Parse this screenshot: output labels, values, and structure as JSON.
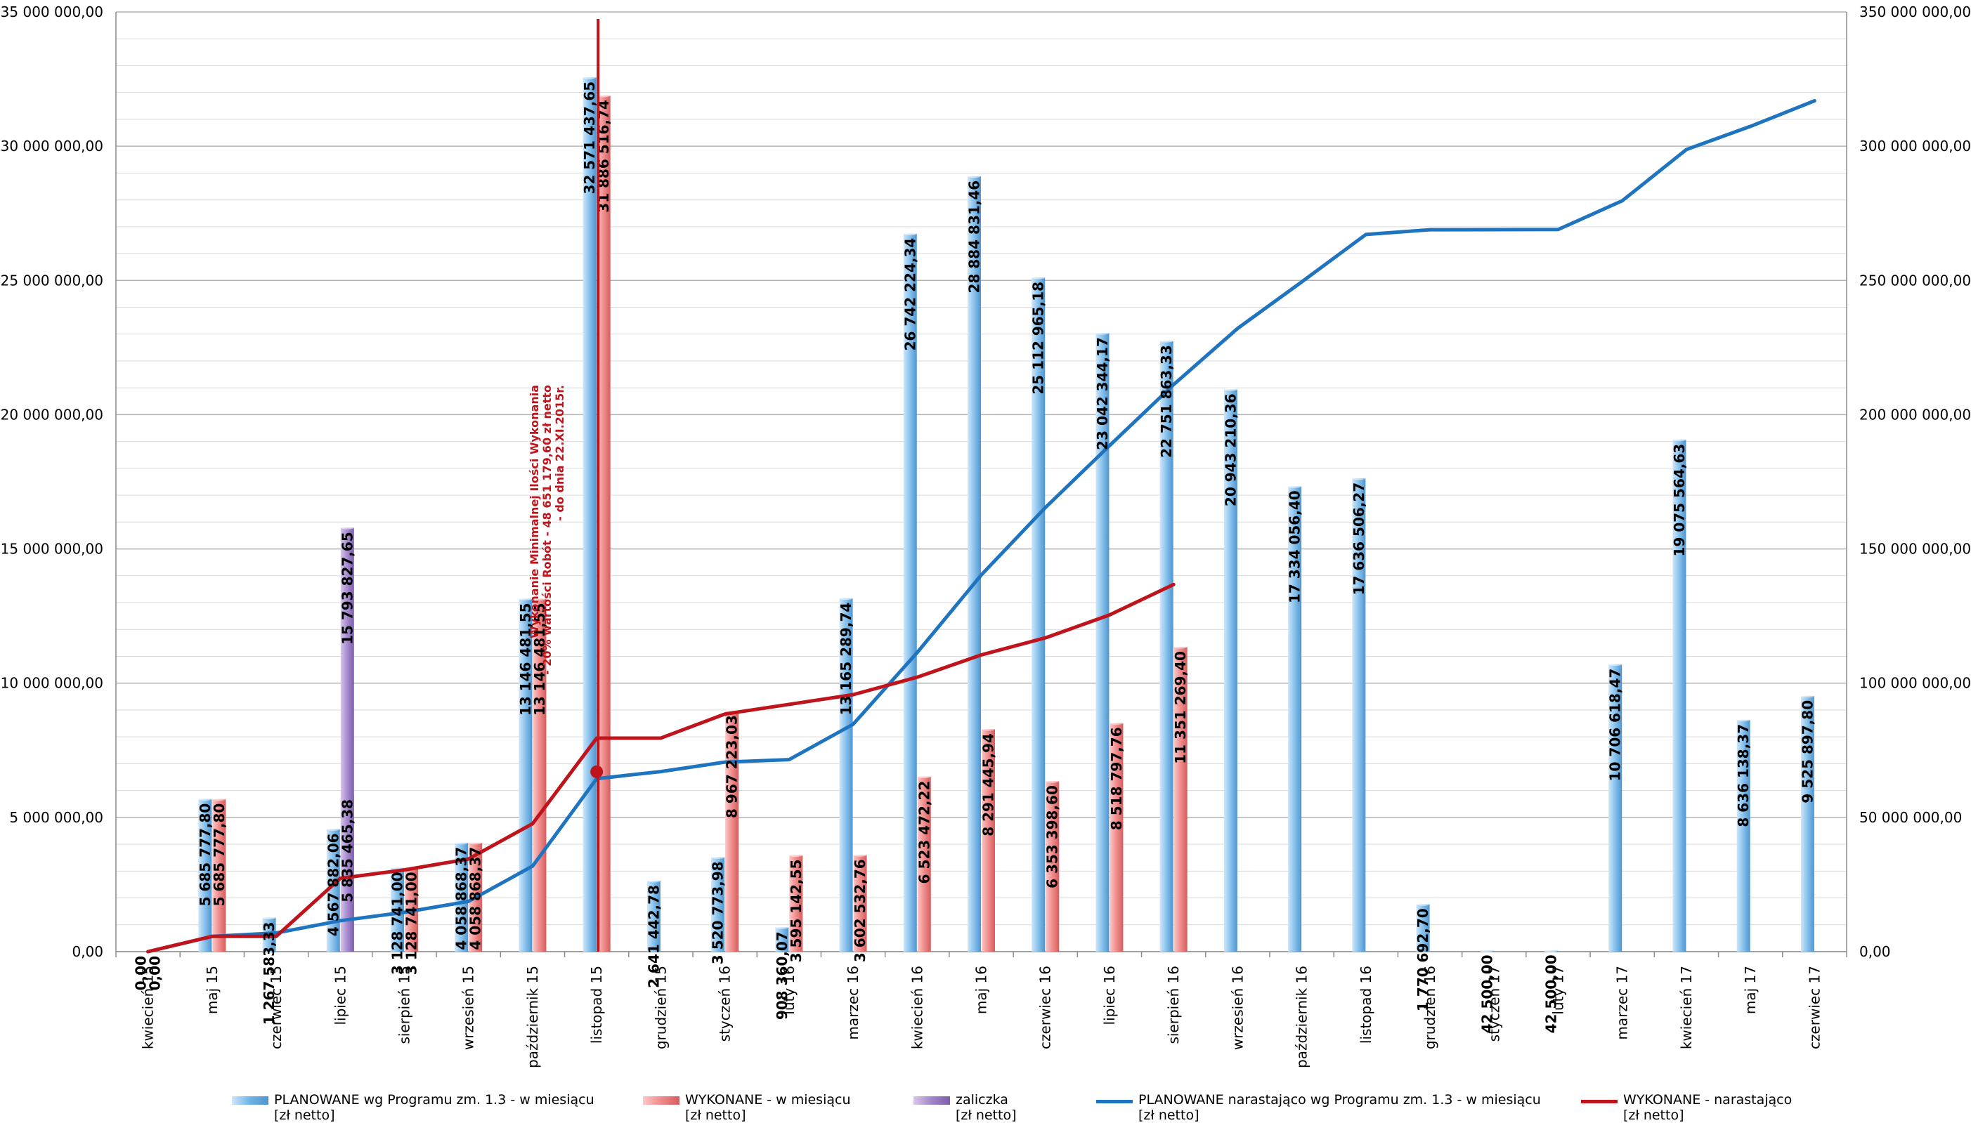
{
  "chart_data": {
    "type": "bar",
    "categories": [
      "kwiecień 15",
      "maj 15",
      "czerwiec 15",
      "lipiec 15",
      "sierpień 15",
      "wrzesień 15",
      "październik 15",
      "listopad 15",
      "grudzień 15",
      "styczeń 16",
      "luty 16",
      "marzec 16",
      "kwiecień 16",
      "maj 16",
      "czerwiec 16",
      "lipiec 16",
      "sierpień 16",
      "wrzesień 16",
      "październik 16",
      "listopad 16",
      "grudzień 16",
      "styczeń 17",
      "luty 17",
      "marzec 17",
      "kwiecień 17",
      "maj 17",
      "czerwiec 17"
    ],
    "y_left": {
      "range": [
        0,
        35000000
      ],
      "ticks": [
        "0,00",
        "5 000 000,00",
        "10 000 000,00",
        "15 000 000,00",
        "20 000 000,00",
        "25 000 000,00",
        "30 000 000,00",
        "35 000 000,00"
      ]
    },
    "y_right": {
      "range": [
        0,
        350000000
      ],
      "ticks": [
        "0,00",
        "50 000 000,00",
        "100 000 000,00",
        "150 000 000,00",
        "200 000 000,00",
        "250 000 000,00",
        "300 000 000,00",
        "350 000 000,00"
      ]
    },
    "grid": true,
    "legend_position": "bottom",
    "bar_series": [
      {
        "name": "PLANOWANE wg Programu zm. 1.3 - w miesiącu\n[zł netto]",
        "color": "#6fb3e6",
        "values": [
          0,
          5685777.8,
          1267583.33,
          4567882.06,
          3128741.0,
          4058868.37,
          13146481.55,
          32571437.65,
          2641442.78,
          3520773.98,
          908360.07,
          13165289.74,
          26742224.34,
          28884831.46,
          25112965.18,
          23042344.17,
          22751863.33,
          20943210.36,
          17334056.4,
          17636506.27,
          1770692.7,
          42500.0,
          42500.0,
          10706618.47,
          19075564.63,
          8636138.37,
          9525897.8
        ],
        "labels": [
          "0,00",
          "5 685 777,80",
          "1 267 583,33",
          "4 567 882,06",
          "3 128 741,00",
          "4 058 868,37",
          "13 146 481,55",
          "32 571 437,65",
          "2 641 442,78",
          "3 520 773,98",
          "908 360,07",
          "13 165 289,74",
          "26 742 224,34",
          "28 884 831,46",
          "25 112 965,18",
          "23 042 344,17",
          "22 751 863,33",
          "20 943 210,36",
          "17 334 056,40",
          "17 636 506,27",
          "1 770 692,70",
          "42 500,00",
          "42 500,00",
          "10 706 618,47",
          "19 075 564,63",
          "8 636 138,37",
          "9 525 897,80"
        ]
      },
      {
        "name": "WYKONANE - w miesiącu\n[zł netto]",
        "color": "#f08a8a",
        "values": [
          0,
          5685777.8,
          null,
          5835465.38,
          3128741.0,
          4058868.37,
          13146481.55,
          31886516.74,
          null,
          8967223.03,
          3595142.55,
          3602532.76,
          6523472.22,
          8291445.94,
          6353398.6,
          8518797.76,
          11351269.4,
          null,
          null,
          null,
          null,
          null,
          null,
          null,
          null,
          null,
          null
        ],
        "labels": [
          "0,00",
          "5 685 777,80",
          "",
          "5 835 465,38",
          "3 128 741,00",
          "4 058 868,37",
          "13 146 481,55",
          "31 886 516,74",
          "",
          "8 967 223,03",
          "3 595 142,55",
          "3 602 532,76",
          "6 523 472,22",
          "8 291 445,94",
          "6 353 398,60",
          "8 518 797,76",
          "11 351 269,40",
          "",
          "",
          "",
          "",
          "",
          "",
          "",
          "",
          "",
          ""
        ]
      },
      {
        "name": "zaliczka\n[zł netto]",
        "color": "#a285c6",
        "values": [
          null,
          null,
          null,
          15793827.65,
          null,
          null,
          null,
          null,
          null,
          null,
          null,
          null,
          null,
          null,
          null,
          null,
          null,
          null,
          null,
          null,
          null,
          null,
          null,
          null,
          null,
          null,
          null
        ],
        "labels": [
          "",
          "",
          "",
          "15 793 827,65",
          "",
          "",
          "",
          "",
          "",
          "",
          "",
          "",
          "",
          "",
          "",
          "",
          "",
          "",
          "",
          "",
          "",
          "",
          "",
          "",
          "",
          "",
          ""
        ]
      }
    ],
    "line_series": [
      {
        "name": "PLANOWANE narastająco wg Programu zm. 1.3 - w miesiącu\n[zł netto]",
        "color": "#1f74c0",
        "axis": "right",
        "values": [
          0,
          5685778,
          6953361,
          11521243,
          14649984,
          18708852,
          31855334,
          64426771,
          67068214,
          70588988,
          71497348,
          84662638,
          111404862,
          140289693,
          165402658,
          188445003,
          211196866,
          232140076,
          249474133,
          267110639,
          268881332,
          268923832,
          268966332,
          279672950,
          298748515,
          307384653,
          316910551
        ]
      },
      {
        "name": "WYKONANE - narastająco\n[zł netto]",
        "color": "#c0141c",
        "axis": "right",
        "values": [
          0,
          5685778,
          5685778,
          27315071,
          30443812,
          34502680,
          47649162,
          79535679,
          79535679,
          88502902,
          92098045,
          95700578,
          102224050,
          110515496,
          116868894,
          125387692,
          136738961
        ]
      }
    ],
    "annotation": {
      "lines": [
        "Wykonanie Minimalnej Ilości Wykonania",
        "- 20% wartości Robót - 48 651 179,60 zł netto",
        "- do dnia 22.XI.2015r."
      ],
      "color": "#c0141c",
      "category_index": 7,
      "marker_value": 6700000
    }
  }
}
